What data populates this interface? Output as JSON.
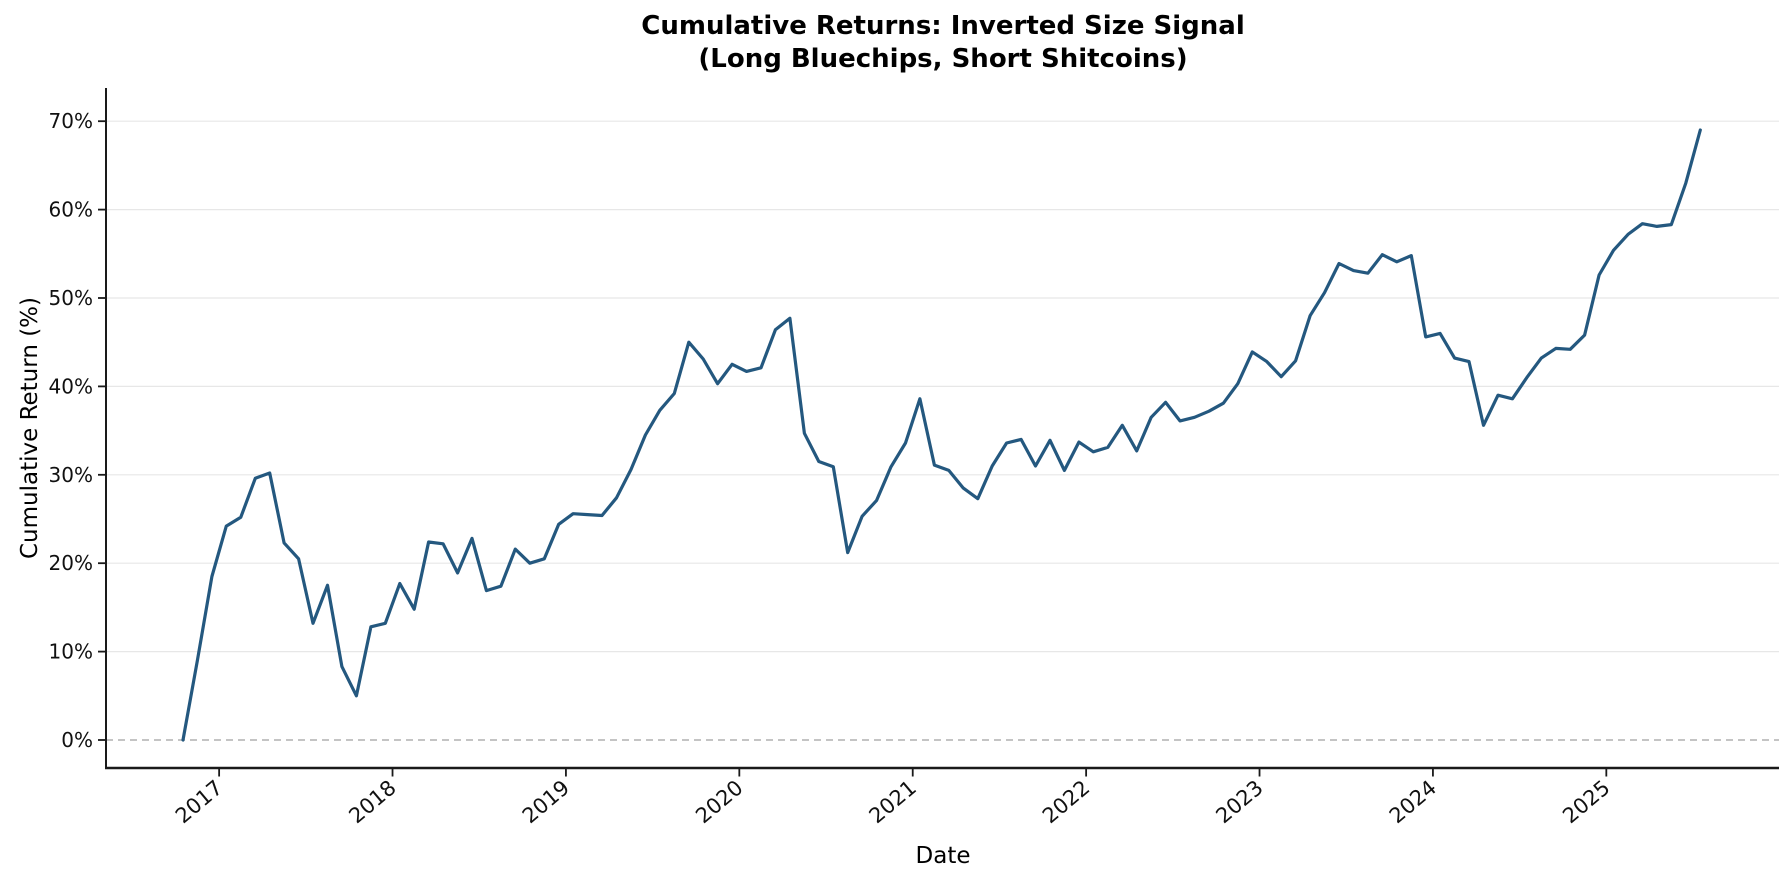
{
  "title": {
    "line1": "Cumulative Returns: Inverted Size Signal",
    "line2": "(Long Bluechips, Short Shitcoins)"
  },
  "chart_data": {
    "type": "line",
    "title": "Cumulative Returns: Inverted Size Signal (Long Bluechips, Short Shitcoins)",
    "xlabel": "Date",
    "ylabel": "Cumulative Return (%)",
    "x_tick_labels": [
      "2017",
      "2018",
      "2019",
      "2020",
      "2021",
      "2022",
      "2023",
      "2024",
      "2025"
    ],
    "y_ticks": [
      0,
      10,
      20,
      30,
      40,
      50,
      60,
      70
    ],
    "y_tick_labels": [
      "0%",
      "10%",
      "20%",
      "30%",
      "40%",
      "50%",
      "60%",
      "70%"
    ],
    "ylim": [
      -3.2,
      73.8
    ],
    "grid": "horizontal",
    "legend": "none",
    "zero_line": {
      "value": 0,
      "style": "dashed"
    },
    "series": [
      {
        "name": "Inverted Size Signal cumulative return",
        "x": [
          "2016-10",
          "2016-11",
          "2016-12",
          "2017-01",
          "2017-02",
          "2017-03",
          "2017-04",
          "2017-05",
          "2017-06",
          "2017-07",
          "2017-08",
          "2017-09",
          "2017-10",
          "2017-11",
          "2017-12",
          "2018-01",
          "2018-02",
          "2018-03",
          "2018-04",
          "2018-05",
          "2018-06",
          "2018-07",
          "2018-08",
          "2018-09",
          "2018-10",
          "2018-11",
          "2018-12",
          "2019-01",
          "2019-02",
          "2019-03",
          "2019-04",
          "2019-05",
          "2019-06",
          "2019-07",
          "2019-08",
          "2019-09",
          "2019-10",
          "2019-11",
          "2019-12",
          "2020-01",
          "2020-02",
          "2020-03",
          "2020-04",
          "2020-05",
          "2020-06",
          "2020-07",
          "2020-08",
          "2020-09",
          "2020-10",
          "2020-11",
          "2020-12",
          "2021-01",
          "2021-02",
          "2021-03",
          "2021-04",
          "2021-05",
          "2021-06",
          "2021-07",
          "2021-08",
          "2021-09",
          "2021-10",
          "2021-11",
          "2021-12",
          "2022-01",
          "2022-02",
          "2022-03",
          "2022-04",
          "2022-05",
          "2022-06",
          "2022-07",
          "2022-08",
          "2022-09",
          "2022-10",
          "2022-11",
          "2022-12",
          "2023-01",
          "2023-02",
          "2023-03",
          "2023-04",
          "2023-05",
          "2023-06",
          "2023-07",
          "2023-08",
          "2023-09",
          "2023-10",
          "2023-11",
          "2023-12",
          "2024-01",
          "2024-02",
          "2024-03",
          "2024-04",
          "2024-05",
          "2024-06",
          "2024-07",
          "2024-08",
          "2024-09",
          "2024-10",
          "2024-11",
          "2024-12",
          "2025-01",
          "2025-02",
          "2025-03",
          "2025-04",
          "2025-05",
          "2025-06",
          "2025-07"
        ],
        "values": [
          0.0,
          9.0,
          18.5,
          24.2,
          25.2,
          29.6,
          30.2,
          22.3,
          20.5,
          13.2,
          17.5,
          8.3,
          5.0,
          12.8,
          13.2,
          17.7,
          14.8,
          22.4,
          22.2,
          18.9,
          22.8,
          16.9,
          17.4,
          21.6,
          20.0,
          20.5,
          24.4,
          25.6,
          25.5,
          25.4,
          27.4,
          30.6,
          34.5,
          37.3,
          39.2,
          45.0,
          43.1,
          40.3,
          42.5,
          41.7,
          42.1,
          46.4,
          47.7,
          34.7,
          31.5,
          30.9,
          21.2,
          25.3,
          27.1,
          30.9,
          33.6,
          38.6,
          31.1,
          30.5,
          28.5,
          27.3,
          31.0,
          33.6,
          34.0,
          31.0,
          33.9,
          30.5,
          33.7,
          32.6,
          33.1,
          35.6,
          32.7,
          36.5,
          38.2,
          36.1,
          36.5,
          37.2,
          38.1,
          40.3,
          43.9,
          42.8,
          41.1,
          42.9,
          48.0,
          50.6,
          53.9,
          53.1,
          52.8,
          54.9,
          54.1,
          54.8,
          45.6,
          46.0,
          43.2,
          42.8,
          35.6,
          39.0,
          38.6,
          41.0,
          43.2,
          44.3,
          44.2,
          45.8,
          52.6,
          55.4,
          57.2,
          58.4,
          58.1,
          58.3,
          63.0,
          69.0
        ]
      }
    ],
    "colors": {
      "line": "#24587f",
      "grid": "#e7e7e7",
      "zero_line": "#b0b0b0",
      "spine": "#1a1a1a",
      "tick_text": "#111111",
      "background": "#ffffff"
    }
  }
}
